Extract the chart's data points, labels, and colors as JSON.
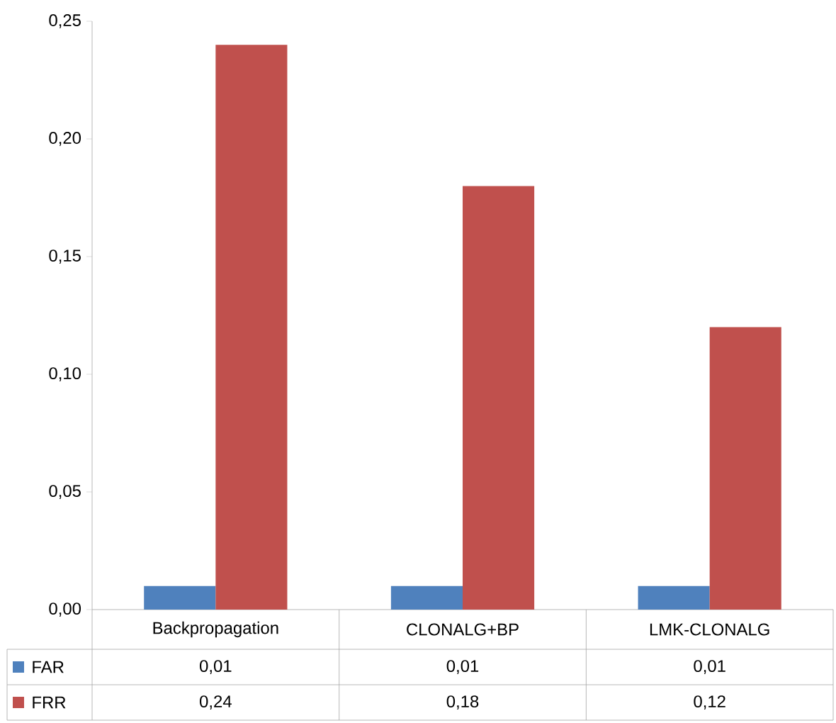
{
  "chart_data": {
    "type": "bar",
    "categories": [
      "Backpropagation",
      "CLONALG+BP",
      "LMK-CLONALG"
    ],
    "series": [
      {
        "name": "FAR",
        "color": "#4f81bd",
        "values": [
          0.01,
          0.01,
          0.01
        ],
        "value_labels": [
          "0,01",
          "0,01",
          "0,01"
        ]
      },
      {
        "name": "FRR",
        "color": "#c0504d",
        "values": [
          0.24,
          0.18,
          0.12
        ],
        "value_labels": [
          "0,24",
          "0,18",
          "0,12"
        ]
      }
    ],
    "ylim": [
      0,
      0.25
    ],
    "yticks": [
      {
        "value": 0,
        "label": "0,00"
      },
      {
        "value": 0.05,
        "label": "0,05"
      },
      {
        "value": 0.1,
        "label": "0,10"
      },
      {
        "value": 0.15,
        "label": "0,15"
      },
      {
        "value": 0.2,
        "label": "0,20"
      },
      {
        "value": 0.25,
        "label": "0,25"
      }
    ],
    "legend": "bottom left"
  }
}
